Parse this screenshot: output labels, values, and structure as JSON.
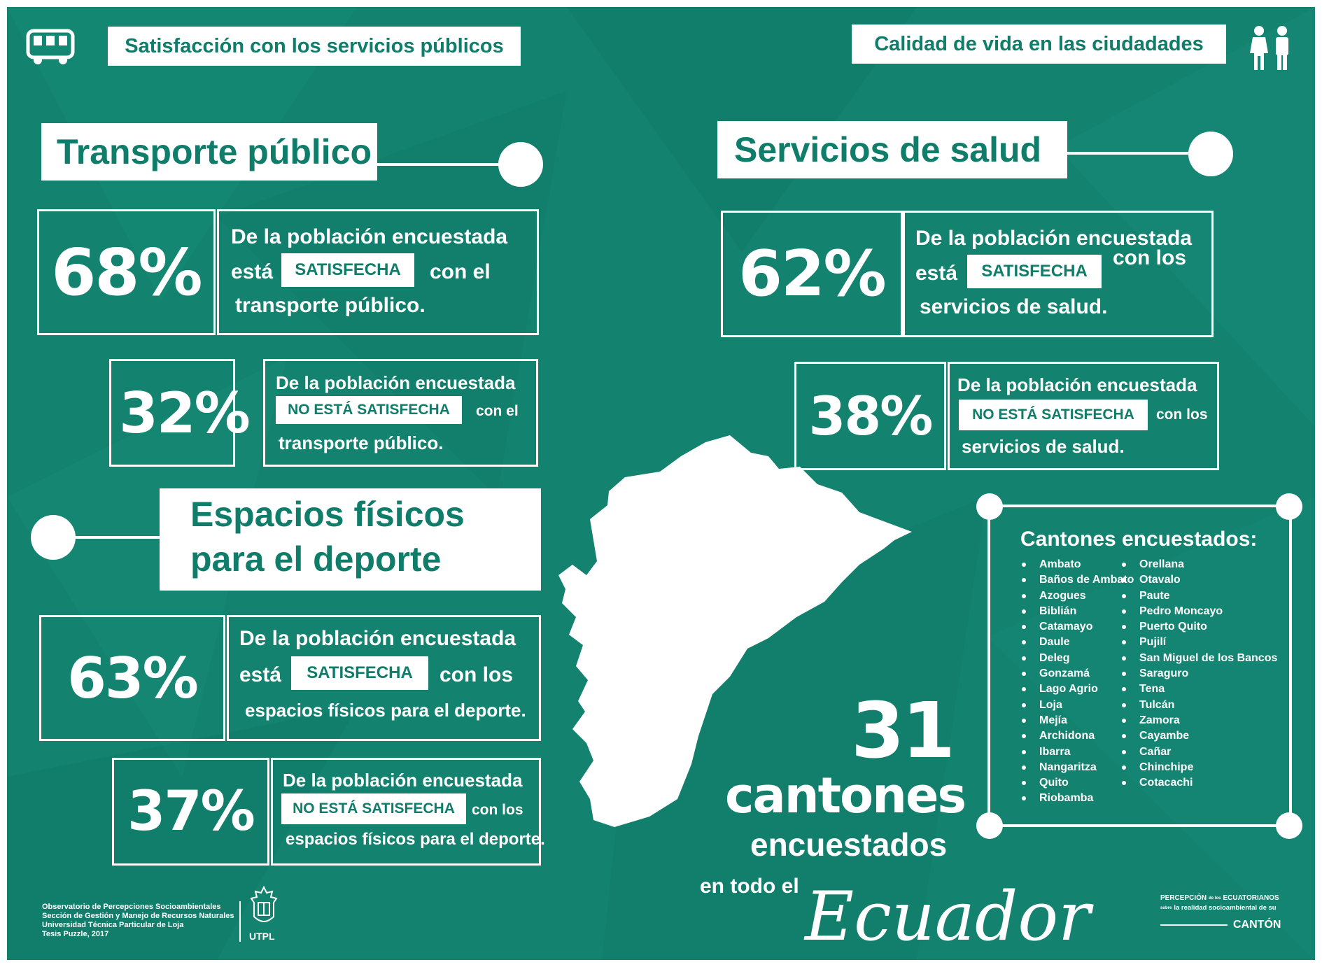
{
  "header": {
    "left_title": "Satisfacción con los servicios públicos",
    "right_title": "Calidad de vida en las ciudadades",
    "left_icon": "bus-icon",
    "right_icon": "people-icon"
  },
  "transport": {
    "section_title": "Transporte público",
    "satisfied": {
      "percent": "68%",
      "line1": "De la población encuestada",
      "pre": "está",
      "badge": "SATISFECHA",
      "post": "con el",
      "line3": "transporte público."
    },
    "unsatisfied": {
      "percent": "32%",
      "line1": "De la población encuestada",
      "badge": "NO ESTÁ SATISFECHA",
      "post": "con el",
      "line3": "transporte público."
    }
  },
  "health": {
    "section_title": "Servicios de salud",
    "satisfied": {
      "percent": "62%",
      "line1": "De la población encuestada",
      "pre": "está",
      "badge": "SATISFECHA",
      "post": "con los",
      "line3": "servicios de salud."
    },
    "unsatisfied": {
      "percent": "38%",
      "line1": "De la población encuestada",
      "badge": "NO ESTÁ SATISFECHA",
      "post": "con los",
      "line3": "servicios de salud."
    }
  },
  "sports": {
    "section_title_line1": "Espacios físicos",
    "section_title_line2": "para el deporte",
    "satisfied": {
      "percent": "63%",
      "line1": "De la población encuestada",
      "pre": "está",
      "badge": "SATISFECHA",
      "post": "con los",
      "line3": "espacios físicos para el deporte."
    },
    "unsatisfied": {
      "percent": "37%",
      "line1": "De la población encuestada",
      "badge": "NO ESTÁ SATISFECHA",
      "post": "con los",
      "line3": "espacios físicos para el deporte."
    }
  },
  "cantones": {
    "title": "Cantones encuestados:",
    "col1": [
      "Ambato",
      "Baños de Ambato",
      "Azogues",
      "Biblián",
      "Catamayo",
      "Daule",
      "Deleg",
      "Gonzamá",
      "Lago Agrio",
      "Loja",
      "Mejía",
      "Archidona",
      "Ibarra",
      "Nangaritza",
      "Quito",
      "Riobamba"
    ],
    "col2": [
      "Orellana",
      "Otavalo",
      "Paute",
      "Pedro Moncayo",
      "Puerto Quito",
      "Pujilí",
      "San Miguel de los Bancos",
      "Saraguro",
      "Tena",
      "Tulcán",
      "Zamora",
      "Cayambe",
      "Cañar",
      "Chinchipe",
      "Cotacachi"
    ]
  },
  "summary": {
    "number": "31",
    "line1": "cantones",
    "line2": "encuestados",
    "line3": "en todo el",
    "country": "Ecuador"
  },
  "footer": {
    "credits": [
      "Observatorio de Percepciones Socioambientales",
      "Sección de Gestión y Manejo de Recursos Naturales",
      "Universidad Técnica Particular de Loja",
      "Tesis Puzzle, 2017"
    ],
    "logo_text": "UTPL",
    "brand_line1": "PERCEPCIÓN",
    "brand_small": "de los",
    "brand_line1b": "ECUATORIANOS",
    "brand_small2": "sobre",
    "brand_line2": "la realidad socioambiental de su",
    "brand_line3": "CANTÓN"
  },
  "colors": {
    "background": "#13826f",
    "text_on_white": "#0f7d69",
    "foreground": "#ffffff"
  }
}
